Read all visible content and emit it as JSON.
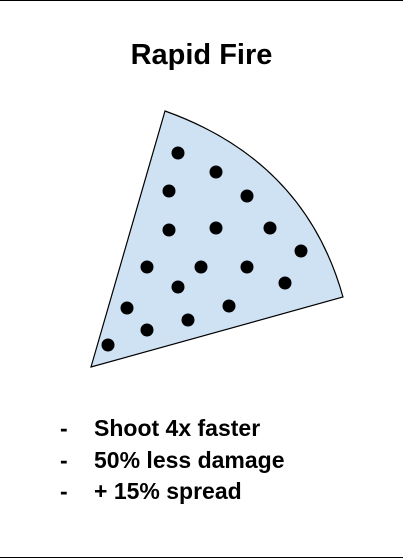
{
  "card": {
    "title": "Rapid Fire",
    "colors": {
      "cone_fill": "#cfe2f3",
      "cone_stroke": "#000000",
      "pellet": "#000000",
      "text": "#000000"
    },
    "bullet_marker": "-",
    "effects": [
      "Shoot 4x faster",
      "50% less damage",
      "+ 15% spread"
    ]
  }
}
